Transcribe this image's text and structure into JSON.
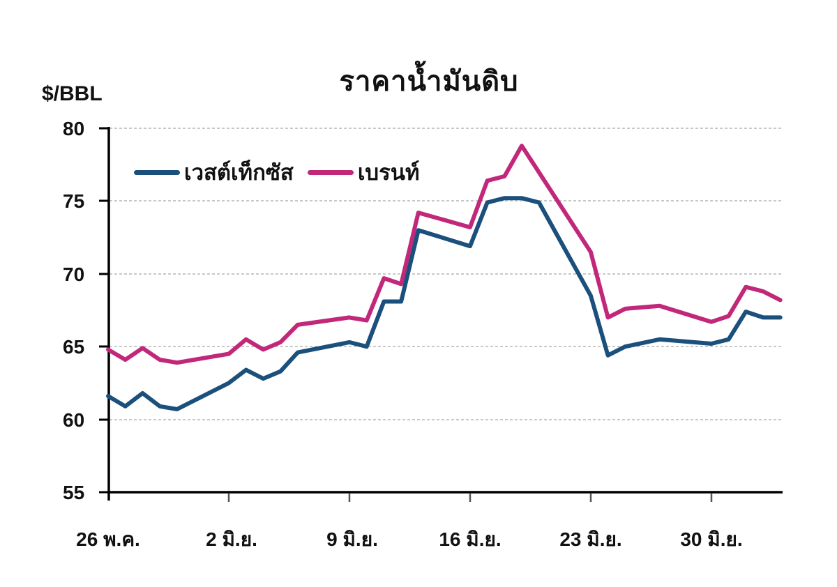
{
  "chart_data": {
    "type": "line",
    "title": "ราคาน้ำมันดิบ",
    "ylabel": "$/BBL",
    "xlabel": "",
    "ylim": [
      55,
      80
    ],
    "yticks": [
      55,
      60,
      65,
      70,
      75,
      80
    ],
    "xticks": [
      "26 พ.ค.",
      "2 มิ.ย.",
      "9 มิ.ย.",
      "16 มิ.ย.",
      "23 มิ.ย.",
      "30 มิ.ย."
    ],
    "grid": "horizontal dashed",
    "legend_position": "top-left inside",
    "x_day_offsets": [
      0,
      1,
      2,
      3,
      4,
      7,
      8,
      9,
      10,
      11,
      14,
      15,
      16,
      17,
      18,
      21,
      22,
      23,
      24,
      25,
      28,
      29,
      30,
      31,
      32,
      35,
      36,
      37,
      38,
      39
    ],
    "series": [
      {
        "name": "เวสต์เท็กซัส",
        "color": "#1b4f7c",
        "points": [
          [
            0,
            61.6
          ],
          [
            1,
            60.9
          ],
          [
            2,
            61.8
          ],
          [
            3,
            60.9
          ],
          [
            4,
            60.7
          ],
          [
            7,
            62.5
          ],
          [
            8,
            63.4
          ],
          [
            9,
            62.8
          ],
          [
            10,
            63.3
          ],
          [
            11,
            64.6
          ],
          [
            14,
            65.3
          ],
          [
            15,
            65.0
          ],
          [
            16,
            68.1
          ],
          [
            17,
            68.1
          ],
          [
            18,
            73.0
          ],
          [
            21,
            71.9
          ],
          [
            22,
            74.9
          ],
          [
            23,
            75.2
          ],
          [
            24,
            75.2
          ],
          [
            25,
            74.9
          ],
          [
            28,
            68.5
          ],
          [
            29,
            64.4
          ],
          [
            30,
            65.0
          ],
          [
            32,
            65.5
          ],
          [
            35,
            65.2
          ],
          [
            36,
            65.5
          ],
          [
            37,
            67.4
          ],
          [
            38,
            67.0
          ],
          [
            39,
            67.0
          ]
        ]
      },
      {
        "name": "เบรนท์",
        "color": "#c2287a",
        "points": [
          [
            0,
            64.8
          ],
          [
            1,
            64.1
          ],
          [
            2,
            64.9
          ],
          [
            3,
            64.1
          ],
          [
            4,
            63.9
          ],
          [
            7,
            64.5
          ],
          [
            8,
            65.5
          ],
          [
            9,
            64.8
          ],
          [
            10,
            65.3
          ],
          [
            11,
            66.5
          ],
          [
            14,
            67.0
          ],
          [
            15,
            66.8
          ],
          [
            16,
            69.7
          ],
          [
            17,
            69.3
          ],
          [
            18,
            74.2
          ],
          [
            21,
            73.2
          ],
          [
            22,
            76.4
          ],
          [
            23,
            76.7
          ],
          [
            24,
            78.8
          ],
          [
            28,
            71.5
          ],
          [
            29,
            67.0
          ],
          [
            30,
            67.6
          ],
          [
            32,
            67.8
          ],
          [
            35,
            66.7
          ],
          [
            36,
            67.1
          ],
          [
            37,
            69.1
          ],
          [
            38,
            68.8
          ],
          [
            39,
            68.2
          ]
        ]
      }
    ]
  },
  "header": {
    "title": "ราคาน้ำมันดิบ",
    "unit": "$/BBL"
  },
  "legend": {
    "wti_label": "เวสต์เท็กซัส",
    "brent_label": "เบรนท์"
  },
  "axis": {
    "y": [
      "80",
      "75",
      "70",
      "65",
      "60",
      "55"
    ],
    "x": [
      "26 พ.ค.",
      "2 มิ.ย.",
      "9 มิ.ย.",
      "16 มิ.ย.",
      "23 มิ.ย.",
      "30 มิ.ย."
    ]
  },
  "colors": {
    "wti": "#1b4f7c",
    "brent": "#c2287a",
    "grid": "#c8c8c8",
    "axis": "#000000"
  }
}
